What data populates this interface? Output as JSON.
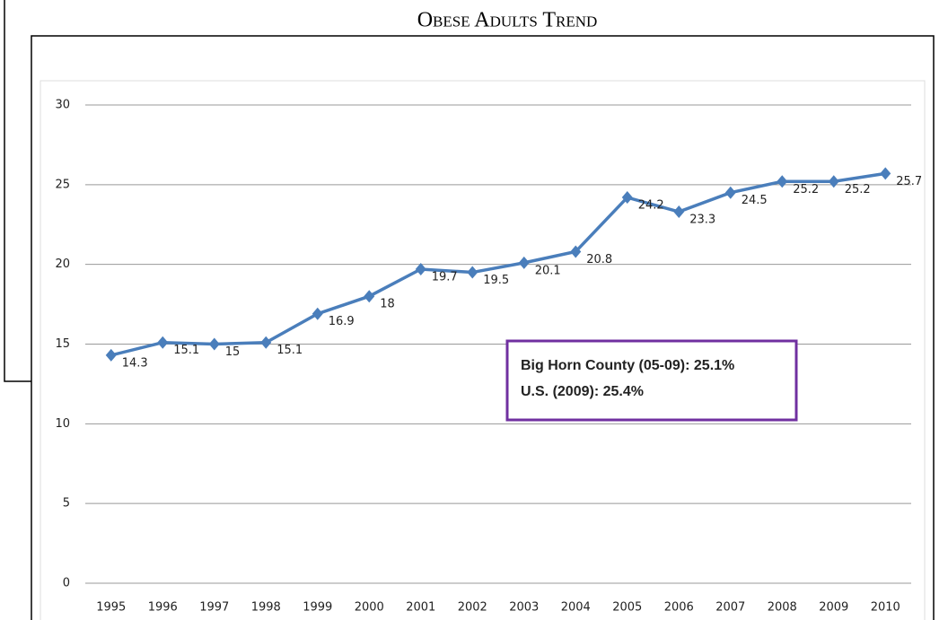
{
  "chart_data": {
    "type": "line",
    "title": "Obese Adults Trend",
    "categories": [
      "1995",
      "1996",
      "1997",
      "1998",
      "1999",
      "2000",
      "2001",
      "2002",
      "2003",
      "2004",
      "2005",
      "2006",
      "2007",
      "2008",
      "2009",
      "2010"
    ],
    "values": [
      14.3,
      15.1,
      15,
      15.1,
      16.9,
      18,
      19.7,
      19.5,
      20.1,
      20.8,
      24.2,
      23.3,
      24.5,
      25.2,
      25.2,
      25.7
    ],
    "color": "#4a7ebb",
    "ylim": [
      0,
      30
    ],
    "yticks": [
      0,
      5,
      10,
      15,
      20,
      25,
      30
    ],
    "grid": true,
    "annotations": [
      "Big Horn County (05-09): 25.1%",
      "U.S. (2009): 25.4%"
    ],
    "annotation_color": "#7030a0"
  }
}
